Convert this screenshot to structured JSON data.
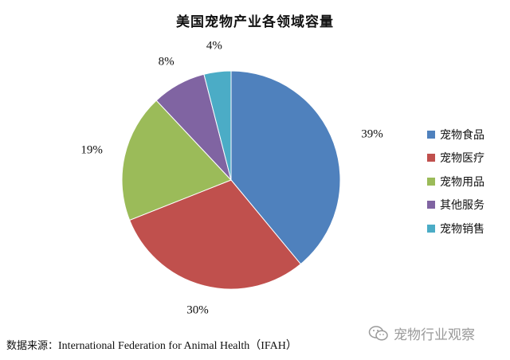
{
  "chart_data": {
    "type": "pie",
    "title": "美国宠物产业各领域容量",
    "categories": [
      "宠物食品",
      "宠物医疗",
      "宠物用品",
      "其他服务",
      "宠物销售"
    ],
    "values": [
      39,
      30,
      19,
      8,
      4
    ],
    "labels": [
      "39%",
      "30%",
      "19%",
      "8%",
      "4%"
    ],
    "colors": [
      "#4f81bd",
      "#c0504d",
      "#9bbb59",
      "#8064a2",
      "#4bacc6"
    ],
    "legend_position": "right",
    "start": "12 o'clock",
    "direction": "clockwise"
  },
  "source": {
    "label": "数据来源：",
    "text": "International Federation for Animal Health（IFAH）"
  },
  "watermark": {
    "text": "宠物行业观察",
    "icon": "wechat-icon"
  }
}
